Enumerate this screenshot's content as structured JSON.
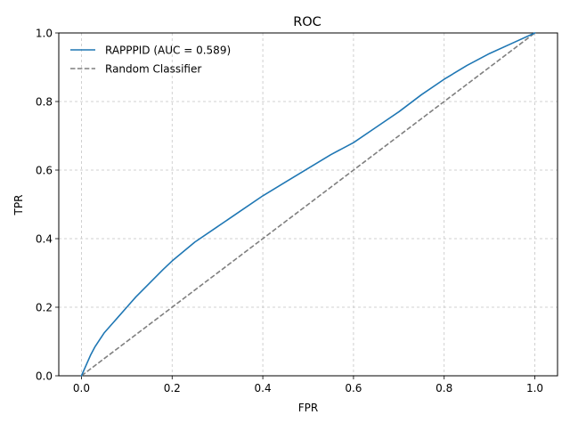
{
  "chart_data": {
    "type": "line",
    "title": "ROC",
    "xlabel": "FPR",
    "ylabel": "TPR",
    "xlim": [
      -0.05,
      1.05
    ],
    "ylim": [
      0.0,
      1.0
    ],
    "xticks": [
      "0.0",
      "0.2",
      "0.4",
      "0.6",
      "0.8",
      "1.0"
    ],
    "yticks": [
      "0.0",
      "0.2",
      "0.4",
      "0.6",
      "0.8",
      "1.0"
    ],
    "grid": true,
    "legend_position": "top-left",
    "series": [
      {
        "name": "RAPPPID (AUC = 0.589)",
        "color": "#1f77b4",
        "style": "solid",
        "x": [
          0.0,
          0.01,
          0.02,
          0.03,
          0.05,
          0.08,
          0.1,
          0.12,
          0.15,
          0.18,
          0.2,
          0.25,
          0.3,
          0.35,
          0.4,
          0.45,
          0.5,
          0.55,
          0.6,
          0.65,
          0.7,
          0.75,
          0.8,
          0.85,
          0.9,
          0.95,
          1.0
        ],
        "y": [
          0.0,
          0.03,
          0.06,
          0.085,
          0.125,
          0.17,
          0.2,
          0.23,
          0.27,
          0.31,
          0.335,
          0.39,
          0.435,
          0.48,
          0.525,
          0.565,
          0.605,
          0.645,
          0.68,
          0.725,
          0.77,
          0.82,
          0.865,
          0.905,
          0.94,
          0.97,
          1.0
        ]
      },
      {
        "name": "Random Classifier",
        "color": "#7f7f7f",
        "style": "dashed",
        "x": [
          0.0,
          1.0
        ],
        "y": [
          0.0,
          1.0
        ]
      }
    ]
  }
}
